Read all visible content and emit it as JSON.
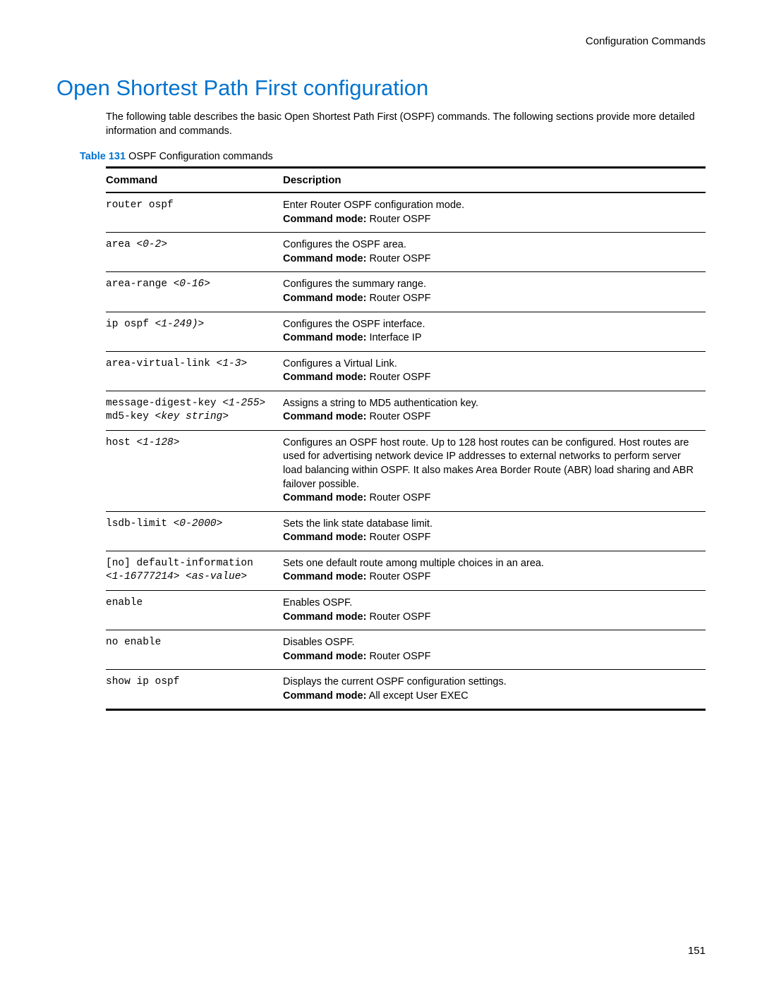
{
  "header": {
    "right": "Configuration Commands"
  },
  "title": "Open Shortest Path First configuration",
  "intro": "The following table describes the basic Open Shortest Path First (OSPF) commands. The following sections provide more detailed information and commands.",
  "table": {
    "label": "Table 131",
    "caption": "OSPF Configuration commands",
    "columns": {
      "command": "Command",
      "description": "Description"
    },
    "mode_label": "Command mode:",
    "rows": [
      {
        "cmd": "router ospf",
        "arg": "",
        "desc": "Enter Router OSPF configuration mode.",
        "mode": " Router OSPF"
      },
      {
        "cmd": "area ",
        "arg": "<0-2>",
        "desc": "Configures the OSPF area.",
        "mode": " Router OSPF"
      },
      {
        "cmd": "area-range ",
        "arg": "<0-16>",
        "desc": "Configures the summary range.",
        "mode": " Router OSPF"
      },
      {
        "cmd": "ip ospf ",
        "arg": "<1-249)>",
        "desc": "Configures the OSPF interface.",
        "mode": " Interface IP"
      },
      {
        "cmd": "area-virtual-link ",
        "arg": "<1-3>",
        "desc": "Configures a Virtual Link.",
        "mode": " Router OSPF"
      },
      {
        "cmd": "message-digest-key ",
        "arg": "<1-255>",
        "cmd2": "\nmd5-key ",
        "arg2": "<key string>",
        "desc": "Assigns a string to MD5 authentication key.",
        "mode": " Router OSPF"
      },
      {
        "cmd": "host ",
        "arg": "<1-128>",
        "desc": "Configures an OSPF host route. Up to 128 host routes can be configured. Host routes are used for advertising network device IP addresses to external networks to perform server load balancing within OSPF. It also makes Area Border Route (ABR) load sharing and ABR failover possible.",
        "mode": " Router OSPF"
      },
      {
        "cmd": "lsdb-limit ",
        "arg": "<0-2000>",
        "desc": "Sets the link state database limit.",
        "mode": " Router OSPF"
      },
      {
        "cmd": "[no] default-information ",
        "arg": "\n<1-16777214> <as-value>",
        "desc": "Sets one default route among multiple choices in an area.",
        "mode": " Router OSPF"
      },
      {
        "cmd": "enable",
        "arg": "",
        "desc": "Enables OSPF.",
        "mode": " Router OSPF"
      },
      {
        "cmd": "no enable",
        "arg": "",
        "desc": "Disables OSPF.",
        "mode": " Router OSPF"
      },
      {
        "cmd": "show ip ospf",
        "arg": "",
        "desc": "Displays the current OSPF configuration settings.",
        "mode": " All except User EXEC"
      }
    ]
  },
  "page_number": "151",
  "colors": {
    "accent": "#0073cf",
    "text": "#000000",
    "background": "#ffffff"
  }
}
